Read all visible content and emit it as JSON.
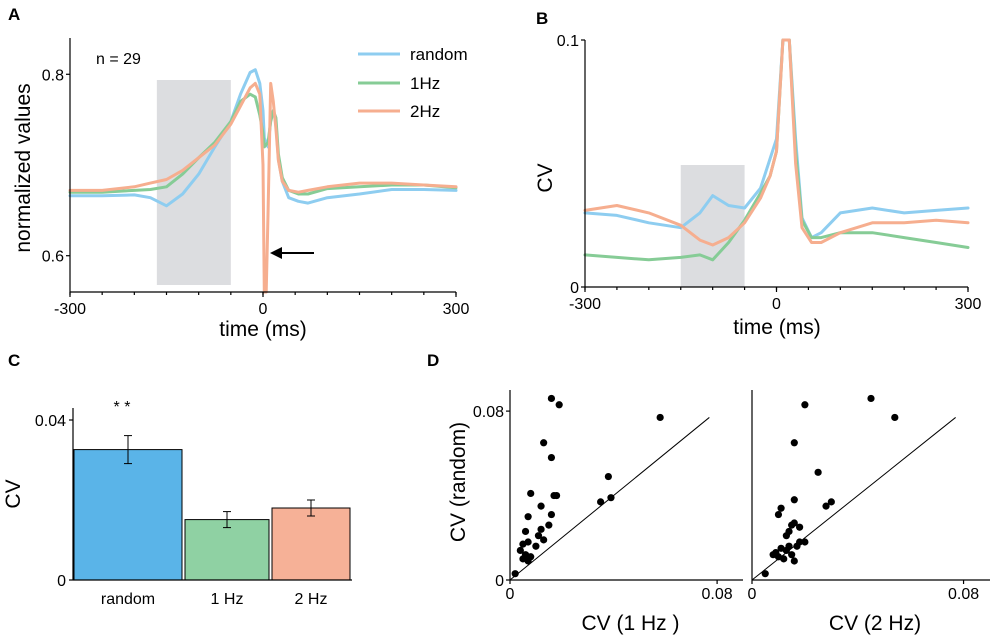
{
  "colors": {
    "random": "#8ecdf0",
    "hz1": "#86cc96",
    "hz2": "#f6ae8f",
    "grey_box": "#dcdde0",
    "bar_random": "#5ab4e8",
    "bar_1hz": "#8fd1a3",
    "bar_2hz": "#f6b197"
  },
  "chart_data": [
    {
      "panel": "A",
      "type": "line",
      "xlabel": "time (ms)",
      "ylabel": "normalized values",
      "xlim": [
        -300,
        300
      ],
      "ylim": [
        0.56,
        0.84
      ],
      "xticks": [
        "-300",
        "0",
        "300"
      ],
      "yticks": [
        "0.6",
        "0.8"
      ],
      "annotation": "n = 29",
      "shaded_window": [
        -165,
        -50
      ],
      "arrow_at": {
        "x": 10,
        "y": 0.6
      },
      "series": [
        {
          "name": "random",
          "color_key": "random",
          "x": [
            -300,
            -250,
            -200,
            -175,
            -150,
            -125,
            -100,
            -75,
            -50,
            -35,
            -20,
            -12,
            -5,
            0,
            2,
            8,
            12,
            16,
            20,
            24,
            30,
            40,
            55,
            70,
            100,
            150,
            200,
            250,
            300
          ],
          "y": [
            0.666,
            0.666,
            0.667,
            0.664,
            0.655,
            0.668,
            0.69,
            0.72,
            0.748,
            0.778,
            0.802,
            0.805,
            0.79,
            0.76,
            0.73,
            0.72,
            0.75,
            0.76,
            0.746,
            0.706,
            0.682,
            0.664,
            0.66,
            0.658,
            0.664,
            0.668,
            0.673,
            0.673,
            0.672
          ]
        },
        {
          "name": "1Hz",
          "color_key": "hz1",
          "x": [
            -300,
            -250,
            -200,
            -175,
            -150,
            -125,
            -100,
            -75,
            -50,
            -35,
            -20,
            -12,
            -5,
            0,
            2,
            8,
            12,
            16,
            20,
            24,
            30,
            40,
            55,
            70,
            100,
            150,
            200,
            250,
            300
          ],
          "y": [
            0.67,
            0.67,
            0.672,
            0.673,
            0.676,
            0.69,
            0.708,
            0.725,
            0.748,
            0.77,
            0.778,
            0.775,
            0.755,
            0.735,
            0.72,
            0.725,
            0.748,
            0.76,
            0.752,
            0.712,
            0.686,
            0.672,
            0.668,
            0.668,
            0.674,
            0.676,
            0.678,
            0.678,
            0.675
          ]
        },
        {
          "name": "2Hz",
          "color_key": "hz2",
          "x": [
            -300,
            -250,
            -200,
            -175,
            -150,
            -125,
            -100,
            -75,
            -50,
            -35,
            -20,
            -12,
            -5,
            0,
            2,
            5,
            8,
            12,
            16,
            20,
            24,
            30,
            40,
            55,
            70,
            100,
            150,
            200,
            250,
            300
          ],
          "y": [
            0.672,
            0.672,
            0.676,
            0.68,
            0.684,
            0.694,
            0.708,
            0.722,
            0.745,
            0.765,
            0.785,
            0.79,
            0.778,
            0.7,
            0.56,
            0.56,
            0.65,
            0.79,
            0.77,
            0.74,
            0.705,
            0.682,
            0.672,
            0.67,
            0.672,
            0.676,
            0.68,
            0.68,
            0.678,
            0.676
          ]
        }
      ]
    },
    {
      "panel": "B",
      "type": "line",
      "xlabel": "time (ms)",
      "ylabel": "CV",
      "xlim": [
        -300,
        300
      ],
      "ylim": [
        0,
        0.1
      ],
      "xticks": [
        "-300",
        "0",
        "300"
      ],
      "yticks": [
        "0",
        "0.1"
      ],
      "shaded_window": [
        -150,
        -50
      ],
      "series": [
        {
          "name": "random",
          "color_key": "random",
          "x": [
            -300,
            -250,
            -200,
            -150,
            -120,
            -100,
            -75,
            -50,
            -25,
            -10,
            0,
            10,
            20,
            30,
            40,
            55,
            70,
            100,
            150,
            200,
            250,
            300
          ],
          "y": [
            0.03,
            0.029,
            0.026,
            0.024,
            0.03,
            0.037,
            0.033,
            0.032,
            0.04,
            0.052,
            0.06,
            0.1,
            0.1,
            0.06,
            0.028,
            0.02,
            0.022,
            0.03,
            0.032,
            0.03,
            0.031,
            0.032
          ]
        },
        {
          "name": "1Hz",
          "color_key": "hz1",
          "x": [
            -300,
            -250,
            -200,
            -150,
            -120,
            -100,
            -75,
            -50,
            -25,
            -10,
            0,
            10,
            20,
            30,
            40,
            55,
            70,
            100,
            150,
            200,
            250,
            300
          ],
          "y": [
            0.013,
            0.012,
            0.011,
            0.012,
            0.013,
            0.011,
            0.018,
            0.027,
            0.038,
            0.045,
            0.055,
            0.1,
            0.1,
            0.055,
            0.027,
            0.02,
            0.02,
            0.022,
            0.022,
            0.02,
            0.018,
            0.016
          ]
        },
        {
          "name": "2Hz",
          "color_key": "hz2",
          "x": [
            -300,
            -250,
            -200,
            -150,
            -120,
            -100,
            -75,
            -50,
            -25,
            -10,
            0,
            10,
            20,
            30,
            40,
            55,
            70,
            100,
            150,
            200,
            250,
            300
          ],
          "y": [
            0.031,
            0.033,
            0.03,
            0.025,
            0.019,
            0.017,
            0.02,
            0.026,
            0.036,
            0.045,
            0.055,
            0.1,
            0.1,
            0.05,
            0.024,
            0.018,
            0.018,
            0.022,
            0.026,
            0.026,
            0.027,
            0.026
          ]
        }
      ]
    },
    {
      "panel": "C",
      "type": "bar",
      "ylabel": "CV",
      "ylim": [
        0,
        0.04
      ],
      "yticks": [
        "0",
        "0.04"
      ],
      "categories": [
        "random",
        "1 Hz",
        "2 Hz"
      ],
      "values": [
        0.0326,
        0.0151,
        0.018
      ],
      "errors": [
        0.0035,
        0.002,
        0.002
      ],
      "significance": "* *"
    },
    {
      "panel": "D",
      "type": "scatter",
      "ylabel": "CV (random)",
      "ylim": [
        0,
        0.09
      ],
      "yticks": [
        "0",
        "0.08"
      ],
      "subplots": [
        {
          "xlabel": "CV (1 Hz )",
          "xlim": [
            0,
            0.09
          ],
          "xticks": [
            "0",
            "0.08"
          ],
          "points": [
            [
              0.002,
              0.003
            ],
            [
              0.005,
              0.01
            ],
            [
              0.004,
              0.014
            ],
            [
              0.006,
              0.012
            ],
            [
              0.007,
              0.009
            ],
            [
              0.008,
              0.011
            ],
            [
              0.005,
              0.017
            ],
            [
              0.006,
              0.023
            ],
            [
              0.007,
              0.03
            ],
            [
              0.008,
              0.041
            ],
            [
              0.007,
              0.018
            ],
            [
              0.01,
              0.016
            ],
            [
              0.011,
              0.021
            ],
            [
              0.012,
              0.024
            ],
            [
              0.013,
              0.019
            ],
            [
              0.015,
              0.026
            ],
            [
              0.016,
              0.031
            ],
            [
              0.017,
              0.04
            ],
            [
              0.018,
              0.04
            ],
            [
              0.012,
              0.035
            ],
            [
              0.013,
              0.065
            ],
            [
              0.016,
              0.058
            ],
            [
              0.016,
              0.086
            ],
            [
              0.019,
              0.083
            ],
            [
              0.035,
              0.037
            ],
            [
              0.038,
              0.049
            ],
            [
              0.039,
              0.039
            ],
            [
              0.058,
              0.077
            ]
          ]
        },
        {
          "xlabel": "CV (2 Hz)",
          "xlim": [
            0,
            0.09
          ],
          "xticks": [
            "0",
            "0.08"
          ],
          "points": [
            [
              0.005,
              0.003
            ],
            [
              0.008,
              0.012
            ],
            [
              0.009,
              0.013
            ],
            [
              0.01,
              0.011
            ],
            [
              0.011,
              0.015
            ],
            [
              0.012,
              0.01
            ],
            [
              0.013,
              0.014
            ],
            [
              0.014,
              0.016
            ],
            [
              0.015,
              0.012
            ],
            [
              0.016,
              0.009
            ],
            [
              0.017,
              0.016
            ],
            [
              0.018,
              0.018
            ],
            [
              0.013,
              0.021
            ],
            [
              0.014,
              0.023
            ],
            [
              0.015,
              0.026
            ],
            [
              0.016,
              0.027
            ],
            [
              0.018,
              0.025
            ],
            [
              0.02,
              0.018
            ],
            [
              0.01,
              0.031
            ],
            [
              0.011,
              0.034
            ],
            [
              0.016,
              0.038
            ],
            [
              0.016,
              0.065
            ],
            [
              0.02,
              0.083
            ],
            [
              0.025,
              0.051
            ],
            [
              0.028,
              0.035
            ],
            [
              0.03,
              0.037
            ],
            [
              0.045,
              0.086
            ],
            [
              0.054,
              0.077
            ]
          ]
        }
      ]
    }
  ]
}
